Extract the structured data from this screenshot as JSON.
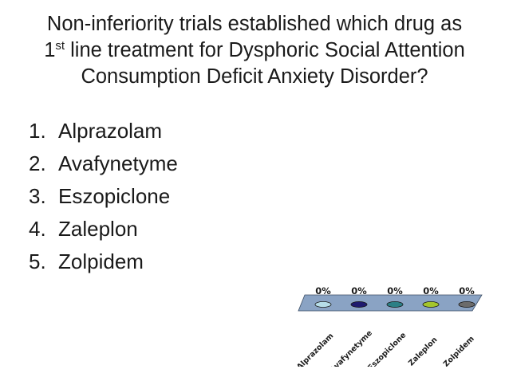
{
  "question": {
    "line1": "Non-inferiority trials established which drug as",
    "line2_prefix": "1",
    "line2_sup": "st",
    "line2_rest": " line treatment for Dysphoric Social Attention",
    "line3": "Consumption Deficit Anxiety Disorder?"
  },
  "answers": [
    {
      "number": "1.",
      "label": "Alprazolam"
    },
    {
      "number": "2.",
      "label": "Avafynetyme"
    },
    {
      "number": "3.",
      "label": "Eszopiclone"
    },
    {
      "number": "4.",
      "label": "Zaleplon"
    },
    {
      "number": "5.",
      "label": "Zolpidem"
    }
  ],
  "chart_data": {
    "type": "bar",
    "categories": [
      "Alprazolam",
      "Avafynetyme",
      "Eszopiclone",
      "Zaleplon",
      "Zolpidem"
    ],
    "values": [
      0,
      0,
      0,
      0,
      0
    ],
    "data_labels": [
      "0%",
      "0%",
      "0%",
      "0%",
      "0%"
    ],
    "colors": [
      "#b6dde8",
      "#1f1a6e",
      "#2c7f86",
      "#a4c52c",
      "#6b6b6b"
    ],
    "floor_color": "#8aa3c4",
    "grid": false,
    "legend": "none",
    "three_d": true
  }
}
